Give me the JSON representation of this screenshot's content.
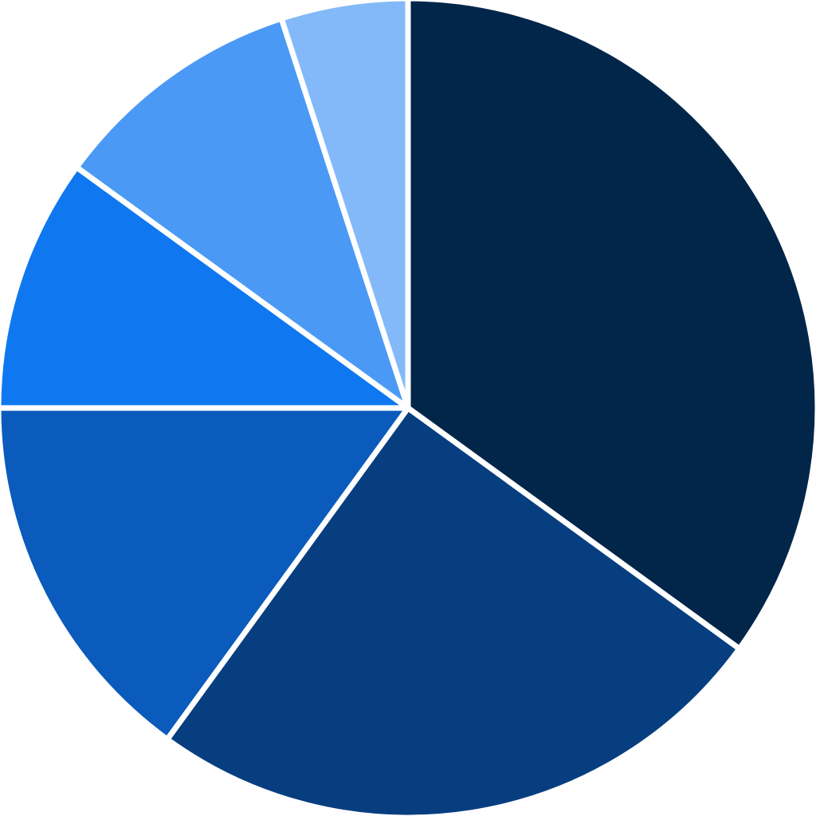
{
  "chart_data": {
    "type": "pie",
    "start_angle": "top",
    "direction": "clockwise",
    "values": [
      35,
      25,
      15,
      10,
      10,
      5
    ],
    "colors": [
      "#02264a",
      "#073e80",
      "#0a5bbb",
      "#0f78f0",
      "#4a9af5",
      "#83b9f8"
    ],
    "separator_color": "#ffffff",
    "legend": "none"
  }
}
